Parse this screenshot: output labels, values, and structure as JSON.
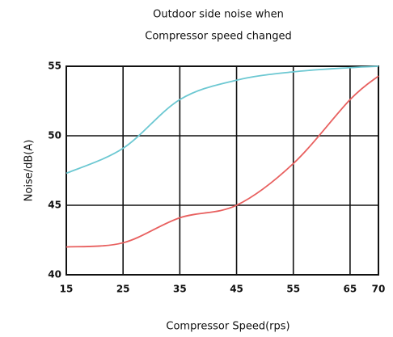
{
  "chart_data": {
    "type": "line",
    "title": [
      "Outdoor side noise when",
      "Compressor speed changed"
    ],
    "xlabel": "Compressor Speed(rps)",
    "ylabel": "Noise/dB(A)",
    "x": [
      15,
      25,
      35,
      45,
      55,
      65,
      70
    ],
    "series": [
      {
        "color": "#6cc8d2",
        "values": [
          47.3,
          49.1,
          52.6,
          54.0,
          54.6,
          54.9,
          55.0
        ]
      },
      {
        "color": "#e8605f",
        "values": [
          42.0,
          42.3,
          44.1,
          45.0,
          48.0,
          52.6,
          54.3
        ]
      }
    ],
    "xlim": [
      15,
      70
    ],
    "xticks": [
      15,
      25,
      35,
      45,
      55,
      65,
      70
    ],
    "ylim": [
      40,
      55
    ],
    "yticks": [
      40,
      45,
      50,
      55
    ],
    "grid": true
  }
}
